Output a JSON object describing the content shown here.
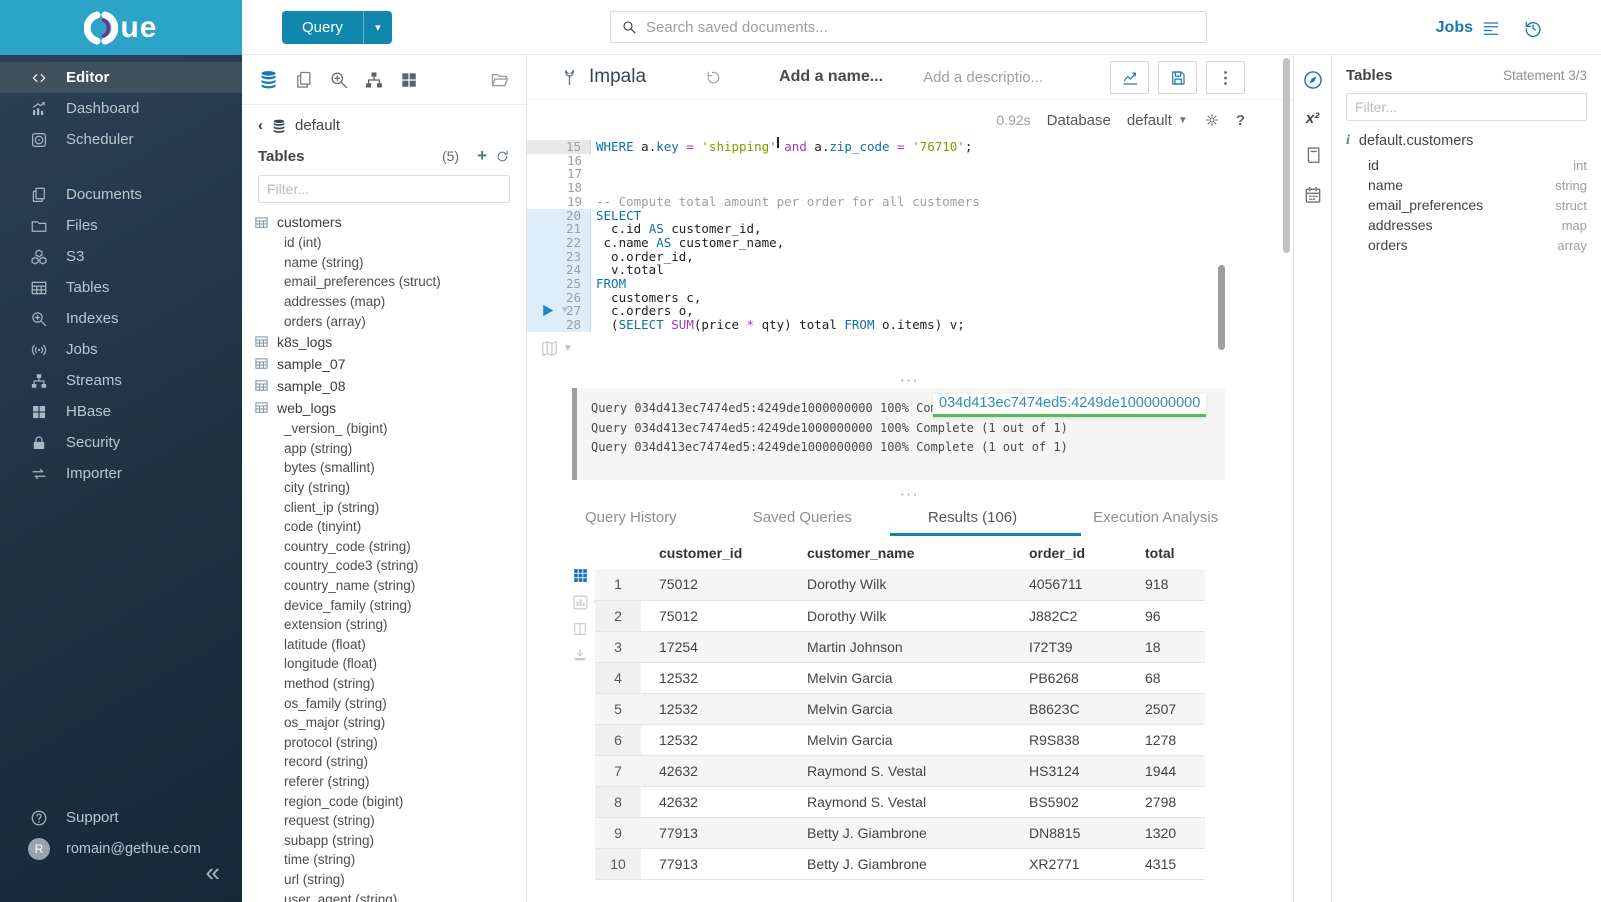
{
  "colors": {
    "accent": "#1287ae",
    "link": "#1779ae",
    "cyan_band": "#2ba4c7",
    "tooltip_green": "#5cb85c",
    "tooltip_blue": "#338bb8"
  },
  "topbar": {
    "query_button": "Query",
    "search_placeholder": "Search saved documents...",
    "jobs_label": "Jobs"
  },
  "sidebar": {
    "logo_text": "ue",
    "items": [
      {
        "label": "Editor",
        "icon": "code",
        "active": true,
        "gap": false
      },
      {
        "label": "Dashboard",
        "icon": "dashboard",
        "active": false,
        "gap": false
      },
      {
        "label": "Scheduler",
        "icon": "scheduler",
        "active": false,
        "gap": false
      },
      {
        "label": "Documents",
        "icon": "documents",
        "active": false,
        "gap": true
      },
      {
        "label": "Files",
        "icon": "folder",
        "active": false,
        "gap": false
      },
      {
        "label": "S3",
        "icon": "cubes",
        "active": false,
        "gap": false
      },
      {
        "label": "Tables",
        "icon": "table",
        "active": false,
        "gap": false
      },
      {
        "label": "Indexes",
        "icon": "search-plus",
        "active": false,
        "gap": false
      },
      {
        "label": "Jobs",
        "icon": "broadcast",
        "active": false,
        "gap": false
      },
      {
        "label": "Streams",
        "icon": "sitemap",
        "active": false,
        "gap": false
      },
      {
        "label": "HBase",
        "icon": "grid",
        "active": false,
        "gap": false
      },
      {
        "label": "Security",
        "icon": "lock",
        "active": false,
        "gap": false
      },
      {
        "label": "Importer",
        "icon": "import-arrows",
        "active": false,
        "gap": false
      }
    ],
    "support_label": "Support",
    "user_email": "romain@gethue.com",
    "avatar_letter": "R",
    "collapse_glyph": "«"
  },
  "left_assist": {
    "breadcrumb_db": "default",
    "tables_label": "Tables",
    "tables_count": "(5)",
    "filter_placeholder": "Filter...",
    "tree": [
      {
        "name": "customers",
        "columns": [
          "id (int)",
          "name (string)",
          "email_preferences (struct)",
          "addresses (map)",
          "orders (array)"
        ]
      },
      {
        "name": "k8s_logs",
        "columns": []
      },
      {
        "name": "sample_07",
        "columns": []
      },
      {
        "name": "sample_08",
        "columns": []
      },
      {
        "name": "web_logs",
        "columns": [
          "_version_ (bigint)",
          "app (string)",
          "bytes (smallint)",
          "city (string)",
          "client_ip (string)",
          "code (tinyint)",
          "country_code (string)",
          "country_code3 (string)",
          "country_name (string)",
          "device_family (string)",
          "extension (string)",
          "latitude (float)",
          "longitude (float)",
          "method (string)",
          "os_family (string)",
          "os_major (string)",
          "protocol (string)",
          "record (string)",
          "referer (string)",
          "region_code (bigint)",
          "request (string)",
          "subapp (string)",
          "time (string)",
          "url (string)",
          "user_agent (string)"
        ]
      }
    ]
  },
  "editor": {
    "engine": "Impala",
    "name_placeholder": "Add a name...",
    "desc_placeholder": "Add a descriptio...",
    "exec_time": "0.92s",
    "database_label": "Database",
    "database_value": "default",
    "code_lines": [
      {
        "n": 15,
        "g": "dim",
        "t": [
          [
            "kw",
            "WHERE"
          ],
          [
            "pl",
            " a."
          ],
          [
            "col",
            "key"
          ],
          [
            "pl",
            " "
          ],
          [
            "op",
            "="
          ],
          [
            "pl",
            " "
          ],
          [
            "str",
            "'shipping'"
          ],
          [
            "pl",
            " "
          ],
          [
            "op",
            "and"
          ],
          [
            "pl",
            " a."
          ],
          [
            "col",
            "zip_code"
          ],
          [
            "pl",
            " "
          ],
          [
            "op",
            "="
          ],
          [
            "pl",
            " "
          ],
          [
            "str",
            "'76710'"
          ],
          [
            "pl",
            ";"
          ]
        ]
      },
      {
        "n": 16,
        "g": "",
        "t": []
      },
      {
        "n": 17,
        "g": "",
        "t": []
      },
      {
        "n": 18,
        "g": "",
        "t": []
      },
      {
        "n": 19,
        "g": "",
        "t": [
          [
            "cmt",
            "-- Compute total amount per order for all customers"
          ]
        ]
      },
      {
        "n": 20,
        "g": "hl",
        "t": [
          [
            "kw",
            "SELECT"
          ]
        ]
      },
      {
        "n": 21,
        "g": "hl",
        "t": [
          [
            "pl",
            "  c.id "
          ],
          [
            "kw",
            "AS"
          ],
          [
            "pl",
            " customer_id,"
          ]
        ]
      },
      {
        "n": 22,
        "g": "hl",
        "t": [
          [
            "pl",
            " c.name "
          ],
          [
            "kw",
            "AS"
          ],
          [
            "pl",
            " customer_name,"
          ]
        ]
      },
      {
        "n": 23,
        "g": "hl",
        "t": [
          [
            "pl",
            "  o.order_id,"
          ]
        ]
      },
      {
        "n": 24,
        "g": "hl",
        "t": [
          [
            "pl",
            "  v.total"
          ]
        ]
      },
      {
        "n": 25,
        "g": "hl",
        "t": [
          [
            "kw",
            "FROM"
          ]
        ]
      },
      {
        "n": 26,
        "g": "hl",
        "t": [
          [
            "pl",
            "  customers c,"
          ]
        ]
      },
      {
        "n": 27,
        "g": "hl",
        "t": [
          [
            "pl",
            "  c.orders o,"
          ]
        ]
      },
      {
        "n": 28,
        "g": "hl",
        "t": [
          [
            "pl",
            "  ("
          ],
          [
            "kw",
            "SELECT"
          ],
          [
            "pl",
            " "
          ],
          [
            "op",
            "SUM"
          ],
          [
            "pl",
            "(price "
          ],
          [
            "op",
            "*"
          ],
          [
            "pl",
            " qty) total "
          ],
          [
            "kw",
            "FROM"
          ],
          [
            "pl",
            " o.items) v;"
          ]
        ]
      }
    ]
  },
  "log": {
    "lines": [
      "Query 034d413ec7474ed5:4249de1000000000 100% Complete (1 out of 1)",
      "Query 034d413ec7474ed5:4249de1000000000 100% Complete (1 out of 1)",
      "Query 034d413ec7474ed5:4249de1000000000 100% Complete (1 out of 1)"
    ],
    "tooltip": "034d413ec7474ed5:4249de1000000000"
  },
  "result_tabs": [
    {
      "label": "Query History",
      "active": false
    },
    {
      "label": "Saved Queries",
      "active": false
    },
    {
      "label": "Results (106)",
      "active": true
    },
    {
      "label": "Execution Analysis",
      "active": false
    }
  ],
  "results": {
    "columns": [
      "customer_id",
      "customer_name",
      "order_id",
      "total"
    ],
    "rows": [
      [
        "1",
        "75012",
        "Dorothy Wilk",
        "4056711",
        "918"
      ],
      [
        "2",
        "75012",
        "Dorothy Wilk",
        "J882C2",
        "96"
      ],
      [
        "3",
        "17254",
        "Martin Johnson",
        "I72T39",
        "18"
      ],
      [
        "4",
        "12532",
        "Melvin Garcia",
        "PB6268",
        "68"
      ],
      [
        "5",
        "12532",
        "Melvin Garcia",
        "B8623C",
        "2507"
      ],
      [
        "6",
        "12532",
        "Melvin Garcia",
        "R9S838",
        "1278"
      ],
      [
        "7",
        "42632",
        "Raymond S. Vestal",
        "HS3124",
        "1944"
      ],
      [
        "8",
        "42632",
        "Raymond S. Vestal",
        "BS5902",
        "2798"
      ],
      [
        "9",
        "77913",
        "Betty J. Giambrone",
        "DN8815",
        "1320"
      ],
      [
        "10",
        "77913",
        "Betty J. Giambrone",
        "XR2771",
        "4315"
      ]
    ]
  },
  "right_assist": {
    "title": "Tables",
    "statement": "Statement 3/3",
    "filter_placeholder": "Filter...",
    "table_ref": "default.customers",
    "columns": [
      {
        "name": "id",
        "type": "int"
      },
      {
        "name": "name",
        "type": "string"
      },
      {
        "name": "email_preferences",
        "type": "struct"
      },
      {
        "name": "addresses",
        "type": "map"
      },
      {
        "name": "orders",
        "type": "array"
      }
    ]
  }
}
